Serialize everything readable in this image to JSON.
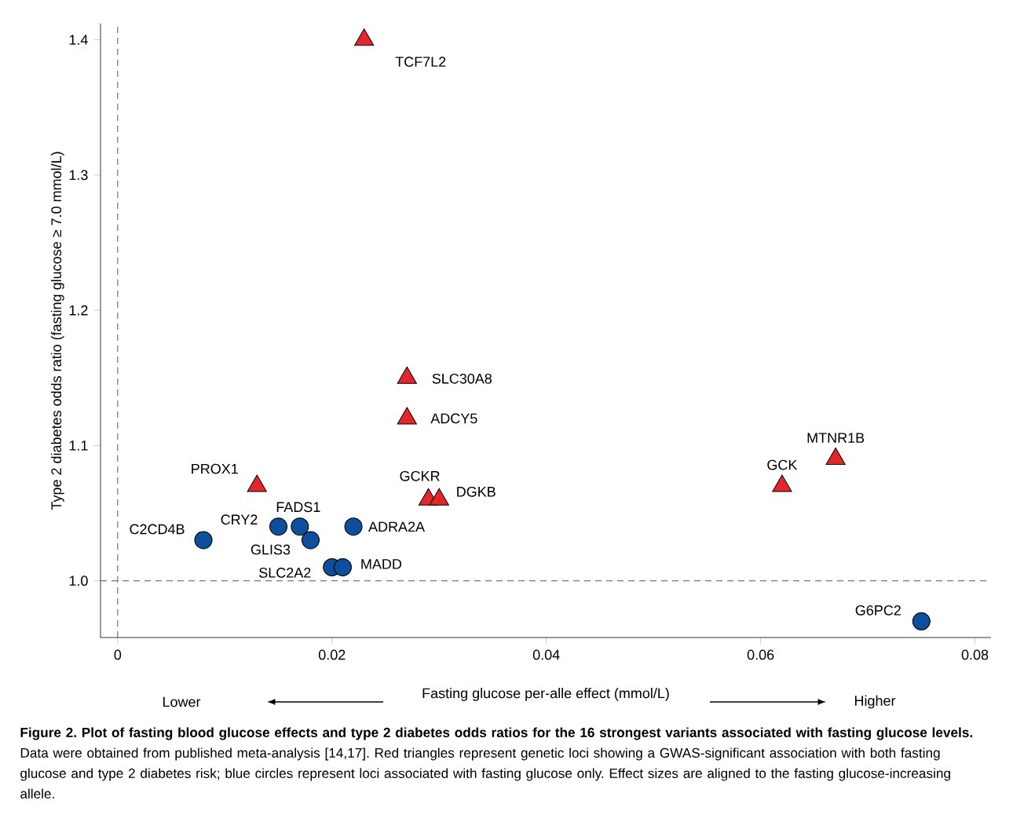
{
  "chart_data": {
    "type": "scatter",
    "xlabel": "Fasting glucose per-alle effect (mmol/L)",
    "ylabel": "Type 2 diabetes odds ratio (fasting glucose ≥ 7.0 mmol/L)",
    "xlim": [
      -0.0016,
      0.0815
    ],
    "ylim": [
      0.958,
      1.412
    ],
    "xticks": [
      0,
      0.02,
      0.04,
      0.06,
      0.08
    ],
    "yticks": [
      {
        "value": 1,
        "label": "1.0"
      },
      1.1,
      1.2,
      1.3,
      1.4
    ],
    "series": [
      {
        "marker": "triangle",
        "color": "#e3262b",
        "x": [
          0.023,
          0.027,
          0.027,
          0.013,
          0.029,
          0.03,
          0.062,
          0.067
        ],
        "values": [
          1.4,
          1.15,
          1.12,
          1.07,
          1.06,
          1.06,
          1.07,
          1.09
        ]
      },
      {
        "marker": "circle",
        "color": "#0d4f9c",
        "x": [
          0.008,
          0.015,
          0.017,
          0.018,
          0.02,
          0.021,
          0.022,
          0.075
        ],
        "values": [
          1.03,
          1.04,
          1.04,
          1.03,
          1.01,
          1.01,
          1.04,
          0.97
        ]
      }
    ],
    "ref_lines": [
      {
        "axis": "x",
        "value": 0,
        "line_style": "dashed",
        "color": "#555555"
      },
      {
        "axis": "y",
        "value": 1,
        "line_style": "dashed",
        "color": "#555555"
      }
    ],
    "annotations": [
      {
        "text": "TCF7L2",
        "x": 0.023,
        "y": 1.4
      },
      {
        "text": "SLC30A8",
        "x": 0.027,
        "y": 1.15
      },
      {
        "text": "ADCY5",
        "x": 0.027,
        "y": 1.12
      },
      {
        "text": "PROX1",
        "x": 0.013,
        "y": 1.07
      },
      {
        "text": "GCKR",
        "x": 0.029,
        "y": 1.06
      },
      {
        "text": "DGKB",
        "x": 0.03,
        "y": 1.06
      },
      {
        "text": "GCK",
        "x": 0.062,
        "y": 1.07
      },
      {
        "text": "MTNR1B",
        "x": 0.067,
        "y": 1.09
      },
      {
        "text": "C2CD4B",
        "x": 0.008,
        "y": 1.03
      },
      {
        "text": "CRY2",
        "x": 0.015,
        "y": 1.04
      },
      {
        "text": "FADS1",
        "x": 0.017,
        "y": 1.04
      },
      {
        "text": "GLIS3",
        "x": 0.018,
        "y": 1.03
      },
      {
        "text": "SLC2A2",
        "x": 0.02,
        "y": 1.01
      },
      {
        "text": "MADD",
        "x": 0.021,
        "y": 1.01
      },
      {
        "text": "ADRA2A",
        "x": 0.022,
        "y": 1.04
      },
      {
        "text": "G6PC2",
        "x": 0.075,
        "y": 0.97
      },
      "Lower",
      "Higher",
      "**Figure 2. Plot of fasting blood glucose effects and type 2 diabetes odds ratios for the 16 strongest variants associated with fasting glucose levels.** Data were obtained from published meta-analysis [14,17]. Red triangles represent genetic loci showing a GWAS-significant association with both fasting glucose and type 2 diabetes risk; blue circles represent loci associated with fasting glucose only. Effect sizes are aligned to the fasting glucose-increasing allele."
    ]
  }
}
